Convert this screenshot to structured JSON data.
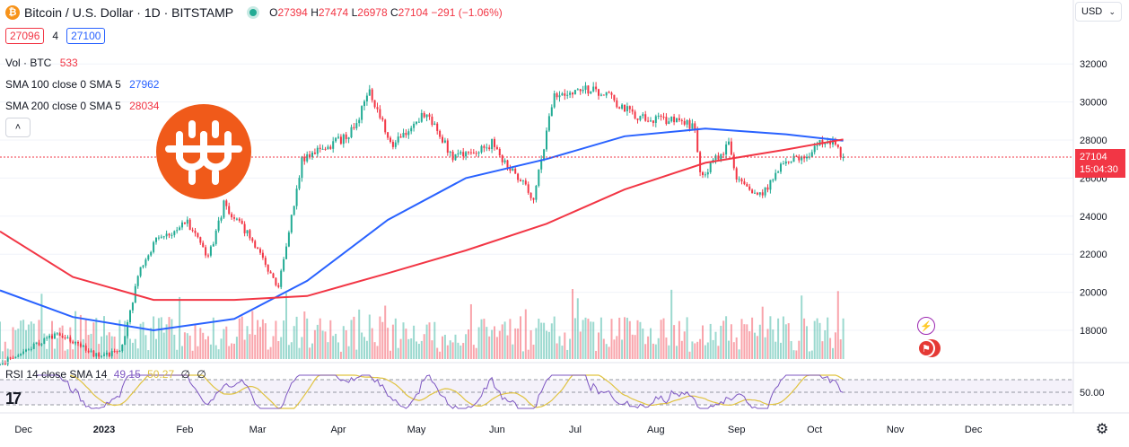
{
  "header": {
    "coin_glyph": "₿",
    "title": "Bitcoin / U.S. Dollar · 1D · BITSTAMP",
    "open_key": "O",
    "open": "27394",
    "high_key": "H",
    "high": "27474",
    "low_key": "L",
    "low": "26978",
    "close_key": "C",
    "close": "27104",
    "change": "−291 (−1.06%)",
    "live_color": "#22ab94"
  },
  "quote": {
    "bid": "27096",
    "spread": "4",
    "ask": "27100"
  },
  "indicators": {
    "volume": {
      "label": "Vol · BTC",
      "value": "533",
      "color": "#f23645"
    },
    "sma100": {
      "label": "SMA 100 close 0 SMA 5",
      "value": "27962",
      "color": "#2962ff"
    },
    "sma200": {
      "label": "SMA 200 close 0 SMA 5",
      "value": "28034",
      "color": "#f23645"
    },
    "collapse_glyph": "˄"
  },
  "currency": {
    "label": "USD",
    "chevron": "⌄"
  },
  "price_tag": {
    "price": "27104",
    "countdown": "15:04:30",
    "color": "#f23645"
  },
  "rsi": {
    "label": "RSI 14 close SMA 14",
    "rsi_value": "49.15",
    "sma_value": "50.27",
    "extra1": "∅",
    "extra2": "∅",
    "axis_label": "50.00"
  },
  "events": {
    "flash_glyph": "⚡",
    "flag_glyph": "⚑"
  },
  "settings_glyph": "⚙",
  "tv_logo": "17",
  "colors": {
    "up": "#22ab94",
    "down": "#f23645",
    "sma100": "#2962ff",
    "sma200": "#f23645",
    "rsi": "#7e57c2",
    "rsi_sma": "#e0c341",
    "logo": "#f05a1a"
  },
  "chart_data": {
    "type": "candlestick",
    "symbol": "Bitcoin / U.S. Dollar",
    "interval": "1D",
    "exchange": "BITSTAMP",
    "x_axis_labels": [
      "Dec",
      "2023",
      "Feb",
      "Mar",
      "Apr",
      "May",
      "Jun",
      "Jul",
      "Aug",
      "Sep",
      "Oct",
      "Nov",
      "Dec"
    ],
    "y_axis_labels": [
      "32000",
      "30000",
      "28000",
      "26000",
      "24000",
      "22000",
      "20000",
      "18000"
    ],
    "ylim": [
      16500,
      33000
    ],
    "close_series": [
      {
        "date": "2022-11-22",
        "close": 16200
      },
      {
        "date": "2022-12-01",
        "close": 16900
      },
      {
        "date": "2022-12-14",
        "close": 17800
      },
      {
        "date": "2022-12-31",
        "close": 16550
      },
      {
        "date": "2023-01-08",
        "close": 17100
      },
      {
        "date": "2023-01-14",
        "close": 20900
      },
      {
        "date": "2023-01-21",
        "close": 22700
      },
      {
        "date": "2023-02-02",
        "close": 23700
      },
      {
        "date": "2023-02-10",
        "close": 21800
      },
      {
        "date": "2023-02-16",
        "close": 24600
      },
      {
        "date": "2023-02-25",
        "close": 23100
      },
      {
        "date": "2023-03-09",
        "close": 20300
      },
      {
        "date": "2023-03-18",
        "close": 26900
      },
      {
        "date": "2023-03-25",
        "close": 27500
      },
      {
        "date": "2023-04-05",
        "close": 28200
      },
      {
        "date": "2023-04-13",
        "close": 30400
      },
      {
        "date": "2023-04-22",
        "close": 27700
      },
      {
        "date": "2023-05-05",
        "close": 29500
      },
      {
        "date": "2023-05-15",
        "close": 27000
      },
      {
        "date": "2023-05-30",
        "close": 27800
      },
      {
        "date": "2023-06-10",
        "close": 25800
      },
      {
        "date": "2023-06-15",
        "close": 25000
      },
      {
        "date": "2023-06-23",
        "close": 30500
      },
      {
        "date": "2023-07-05",
        "close": 30700
      },
      {
        "date": "2023-07-14",
        "close": 30300
      },
      {
        "date": "2023-07-24",
        "close": 29200
      },
      {
        "date": "2023-08-05",
        "close": 29100
      },
      {
        "date": "2023-08-16",
        "close": 28700
      },
      {
        "date": "2023-08-18",
        "close": 26100
      },
      {
        "date": "2023-08-29",
        "close": 27700
      },
      {
        "date": "2023-09-01",
        "close": 25800
      },
      {
        "date": "2023-09-11",
        "close": 25100
      },
      {
        "date": "2023-09-20",
        "close": 27100
      },
      {
        "date": "2023-09-28",
        "close": 27000
      },
      {
        "date": "2023-10-02",
        "close": 27900
      },
      {
        "date": "2023-10-08",
        "close": 27900
      },
      {
        "date": "2023-10-12",
        "close": 27104
      }
    ],
    "sma100": [
      {
        "date": "2022-11-22",
        "value": 20100
      },
      {
        "date": "2022-12-20",
        "value": 18700
      },
      {
        "date": "2023-01-20",
        "value": 18000
      },
      {
        "date": "2023-02-20",
        "value": 18600
      },
      {
        "date": "2023-03-20",
        "value": 20600
      },
      {
        "date": "2023-04-20",
        "value": 23800
      },
      {
        "date": "2023-05-20",
        "value": 26000
      },
      {
        "date": "2023-06-20",
        "value": 27000
      },
      {
        "date": "2023-07-20",
        "value": 28200
      },
      {
        "date": "2023-08-20",
        "value": 28600
      },
      {
        "date": "2023-09-20",
        "value": 28300
      },
      {
        "date": "2023-10-12",
        "value": 27962
      }
    ],
    "sma200": [
      {
        "date": "2022-11-22",
        "value": 23200
      },
      {
        "date": "2022-12-20",
        "value": 20800
      },
      {
        "date": "2023-01-20",
        "value": 19600
      },
      {
        "date": "2023-02-20",
        "value": 19600
      },
      {
        "date": "2023-03-20",
        "value": 19800
      },
      {
        "date": "2023-04-20",
        "value": 21000
      },
      {
        "date": "2023-05-20",
        "value": 22200
      },
      {
        "date": "2023-06-20",
        "value": 23600
      },
      {
        "date": "2023-07-20",
        "value": 25400
      },
      {
        "date": "2023-08-20",
        "value": 26800
      },
      {
        "date": "2023-09-20",
        "value": 27500
      },
      {
        "date": "2023-10-12",
        "value": 28034
      }
    ],
    "current_price": 27104,
    "rsi": {
      "overbought": 70,
      "midline": 50,
      "oversold": 30,
      "last": 49.15,
      "sma_last": 50.27
    }
  }
}
